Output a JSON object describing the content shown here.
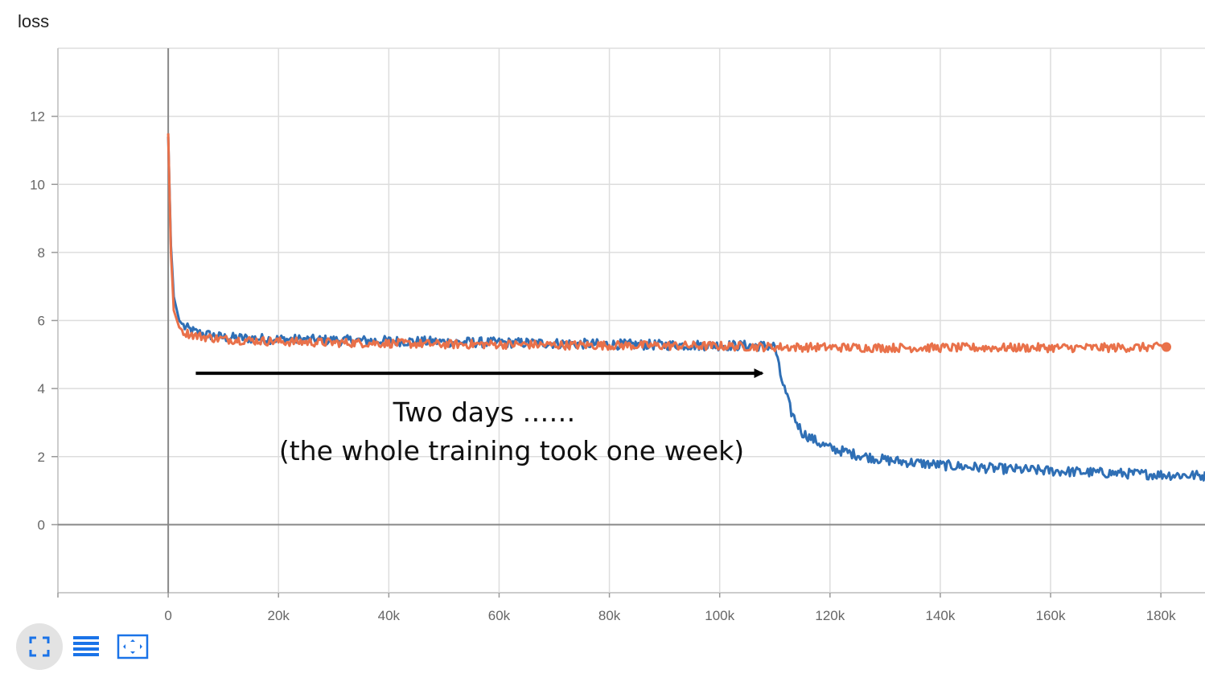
{
  "chart_data": {
    "type": "line",
    "title": "loss",
    "xlim": [
      -20000,
      188000
    ],
    "ylim": [
      -2,
      14
    ],
    "x_ticks": [
      0,
      20000,
      40000,
      60000,
      80000,
      100000,
      120000,
      140000,
      160000,
      180000
    ],
    "x_tick_labels": [
      "0",
      "20k",
      "40k",
      "60k",
      "80k",
      "100k",
      "120k",
      "140k",
      "160k",
      "180k"
    ],
    "y_ticks": [
      0,
      2,
      4,
      6,
      8,
      10,
      12
    ],
    "y_tick_labels": [
      "0",
      "2",
      "4",
      "6",
      "8",
      "10",
      "12"
    ],
    "grid": true,
    "series": [
      {
        "color": "#2f6fb5",
        "x": [
          0,
          500,
          1000,
          2000,
          3000,
          5000,
          10000,
          20000,
          30000,
          40000,
          50000,
          60000,
          70000,
          80000,
          90000,
          100000,
          110000,
          111000,
          113000,
          115000,
          118000,
          120000,
          125000,
          130000,
          140000,
          150000,
          160000,
          170000,
          180000,
          188000
        ],
        "y": [
          11.4,
          8.2,
          6.7,
          6.0,
          5.8,
          5.65,
          5.5,
          5.45,
          5.42,
          5.4,
          5.37,
          5.35,
          5.33,
          5.3,
          5.28,
          5.27,
          5.25,
          4.4,
          3.3,
          2.7,
          2.4,
          2.25,
          2.05,
          1.9,
          1.75,
          1.65,
          1.58,
          1.52,
          1.47,
          1.44
        ],
        "noise": 0.15
      },
      {
        "color": "#e9714a",
        "x": [
          0,
          500,
          1000,
          2000,
          3000,
          5000,
          10000,
          20000,
          30000,
          40000,
          50000,
          60000,
          70000,
          80000,
          90000,
          100000,
          110000,
          120000,
          130000,
          140000,
          150000,
          160000,
          170000,
          181000
        ],
        "y": [
          11.5,
          8.0,
          6.3,
          5.8,
          5.65,
          5.55,
          5.45,
          5.38,
          5.35,
          5.33,
          5.3,
          5.3,
          5.28,
          5.27,
          5.26,
          5.25,
          5.22,
          5.21,
          5.2,
          5.2,
          5.2,
          5.2,
          5.2,
          5.22
        ],
        "noise": 0.13
      }
    ],
    "annotation": {
      "arrow_from": [
        5000,
        4.45
      ],
      "arrow_to": [
        108000,
        4.45
      ],
      "text_lines": [
        "Two days ……",
        "(the whole training took one week)"
      ]
    }
  },
  "toolbar": {
    "buttons": [
      {
        "icon": "fit-to-screen-icon",
        "color": "#1a73e8"
      },
      {
        "icon": "list-icon",
        "color": "#1a73e8"
      },
      {
        "icon": "expand-icon",
        "color": "#1a73e8"
      }
    ]
  }
}
